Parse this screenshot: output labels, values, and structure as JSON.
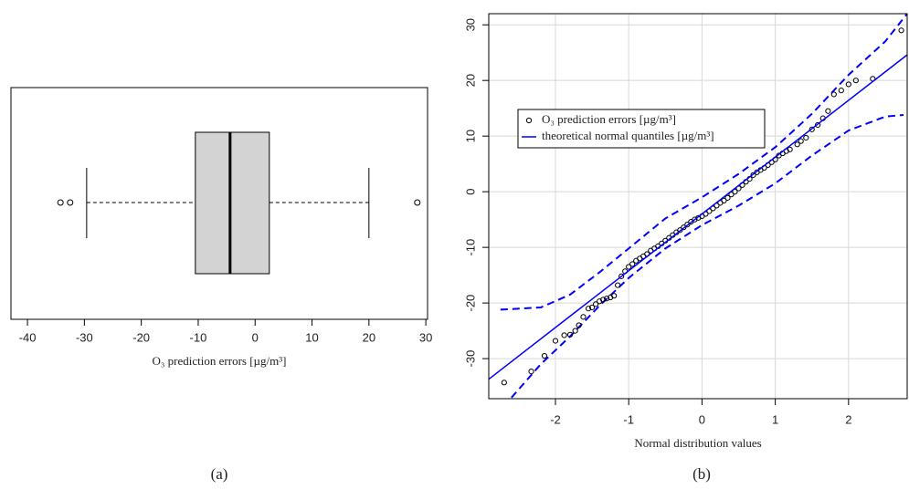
{
  "chart_data": [
    {
      "type": "box",
      "xlabel": "O₃ prediction errors [µg/m³]",
      "caption": "(a)",
      "stats": {
        "min": -29.6,
        "q1": -10.5,
        "median": -4.4,
        "q3": 2.5,
        "max": 20.0
      },
      "outliers": [
        -34.2,
        -32.5,
        28.5
      ],
      "color": "#d3d3d3",
      "xlim": [
        -42.9,
        30.3
      ],
      "xticks": [
        -40,
        -30,
        -20,
        -10,
        0,
        10,
        20,
        30
      ]
    },
    {
      "type": "qq",
      "xlabel": "Normal distribution values",
      "caption": "(b)",
      "series": [
        {
          "name": "O₃ prediction errors [µg/m³]",
          "type": "scatter",
          "color": "#000000",
          "x": [
            -2.7,
            -2.33,
            -2.15,
            -2.0,
            -1.88,
            -1.8,
            -1.73,
            -1.68,
            -1.62,
            -1.55,
            -1.5,
            -1.45,
            -1.4,
            -1.35,
            -1.3,
            -1.25,
            -1.2,
            -1.15,
            -1.1,
            -1.05,
            -1.0,
            -0.95,
            -0.9,
            -0.85,
            -0.8,
            -0.75,
            -0.7,
            -0.65,
            -0.6,
            -0.55,
            -0.5,
            -0.45,
            -0.4,
            -0.35,
            -0.3,
            -0.25,
            -0.2,
            -0.15,
            -0.1,
            -0.05,
            0,
            0.05,
            0.1,
            0.15,
            0.2,
            0.25,
            0.3,
            0.35,
            0.4,
            0.45,
            0.5,
            0.55,
            0.6,
            0.65,
            0.7,
            0.75,
            0.8,
            0.85,
            0.9,
            0.95,
            1.0,
            1.05,
            1.1,
            1.15,
            1.2,
            1.3,
            1.35,
            1.42,
            1.5,
            1.58,
            1.65,
            1.72,
            1.8,
            1.9,
            2.0,
            2.1,
            2.33,
            2.72
          ],
          "values": [
            -34.3,
            -32.3,
            -29.5,
            -26.8,
            -25.8,
            -25.7,
            -25.0,
            -24.0,
            -22.5,
            -21.0,
            -20.8,
            -20.2,
            -19.7,
            -19.4,
            -19.2,
            -19.0,
            -18.7,
            -16.8,
            -15.2,
            -14.3,
            -13.5,
            -13.0,
            -12.4,
            -12.0,
            -11.6,
            -11.2,
            -10.6,
            -10.2,
            -9.8,
            -9.3,
            -8.8,
            -8.3,
            -7.8,
            -7.3,
            -6.9,
            -6.4,
            -5.9,
            -5.4,
            -5.0,
            -4.7,
            -4.4,
            -4.0,
            -3.5,
            -3.0,
            -2.5,
            -2.0,
            -1.6,
            -1.1,
            -0.5,
            0,
            0.6,
            1.2,
            1.8,
            2.3,
            3.0,
            3.5,
            3.9,
            4.3,
            4.8,
            5.3,
            5.8,
            6.5,
            6.9,
            7.3,
            7.6,
            8.5,
            9.1,
            9.7,
            11.2,
            12.0,
            13.2,
            14.5,
            17.5,
            18.2,
            19.3,
            20.0,
            20.3,
            29.0
          ]
        },
        {
          "name": "theoretical normal quantiles [µg/m³]",
          "type": "line",
          "color": "#0000ff",
          "x": [
            -2.91,
            2.8
          ],
          "values": [
            -33.7,
            24.6
          ]
        }
      ],
      "bands": [
        {
          "color": "#0000ff",
          "x": [
            -2.75,
            -2.2,
            -1.8,
            -1.4,
            -1,
            -0.5,
            0,
            0.5,
            1,
            1.5,
            2,
            2.5,
            2.8
          ],
          "values": [
            -21.2,
            -20.8,
            -18.5,
            -14.5,
            -10.2,
            -4.8,
            -1,
            3.2,
            8,
            14,
            21,
            27,
            32
          ]
        },
        {
          "color": "#0000ff",
          "x": [
            -2.6,
            -2.2,
            -1.8,
            -1.4,
            -1,
            -0.5,
            0,
            0.5,
            1,
            1.5,
            2,
            2.5,
            2.75
          ],
          "values": [
            -37,
            -31,
            -26,
            -20.5,
            -15.5,
            -10.2,
            -6,
            -2.5,
            1.5,
            6.5,
            11,
            13.5,
            13.8
          ]
        }
      ],
      "xlim": [
        -2.91,
        2.8
      ],
      "ylim": [
        -37.2,
        32
      ],
      "xticks": [
        -2,
        -1,
        0,
        1,
        2
      ],
      "yticks": [
        -30,
        -20,
        -10,
        0,
        10,
        20,
        30
      ],
      "grid": true,
      "legend": "top-left"
    }
  ]
}
